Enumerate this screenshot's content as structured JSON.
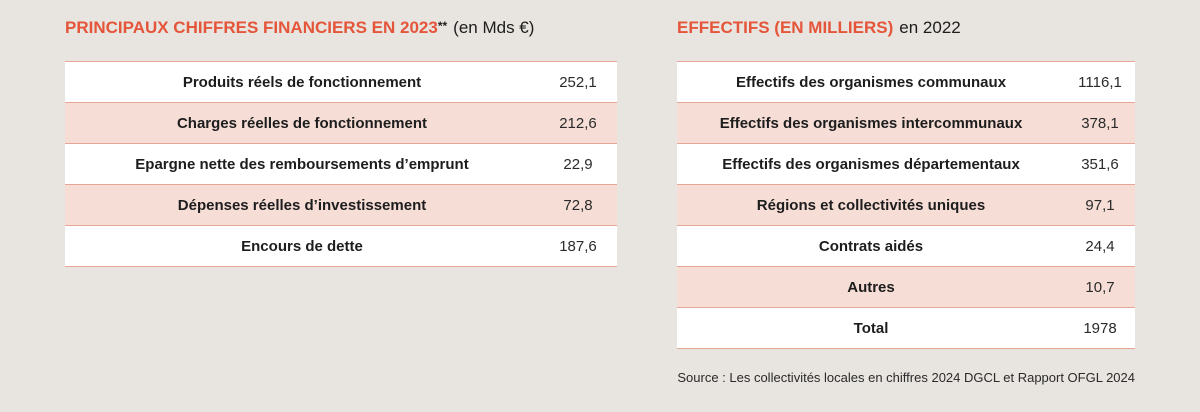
{
  "finance": {
    "title": "PRINCIPAUX CHIFFRES FINANCIERS EN 2023",
    "stars": "**",
    "unit": "(en Mds €)",
    "rows": [
      {
        "label": "Produits réels de fonctionnement",
        "value": "252,1"
      },
      {
        "label": "Charges réelles de fonctionnement",
        "value": "212,6"
      },
      {
        "label": "Epargne nette des remboursements d’emprunt",
        "value": "22,9"
      },
      {
        "label": "Dépenses réelles d’investissement",
        "value": "72,8"
      },
      {
        "label": "Encours de dette",
        "value": "187,6"
      }
    ]
  },
  "staff": {
    "title": "EFFECTIFS (EN MILLIERS)",
    "year": "en 2022",
    "rows": [
      {
        "label": "Effectifs des organismes communaux",
        "value": "1116,1"
      },
      {
        "label": "Effectifs des organismes intercommunaux",
        "value": "378,1"
      },
      {
        "label": "Effectifs des organismes départementaux",
        "value": "351,6"
      },
      {
        "label": "Régions et collectivités uniques",
        "value": "97,1"
      },
      {
        "label": "Contrats aidés",
        "value": "24,4"
      },
      {
        "label": "Autres",
        "value": "10,7"
      },
      {
        "label": "Total",
        "value": "1978"
      }
    ]
  },
  "source": "Source : Les collectivités locales en chiffres 2024 DGCL et Rapport OFGL 2024",
  "colors": {
    "accent": "#e4553a",
    "background": "#e8e4df",
    "row_alt": "#f6ddd6",
    "row": "#ffffff",
    "border": "#e7a695"
  }
}
